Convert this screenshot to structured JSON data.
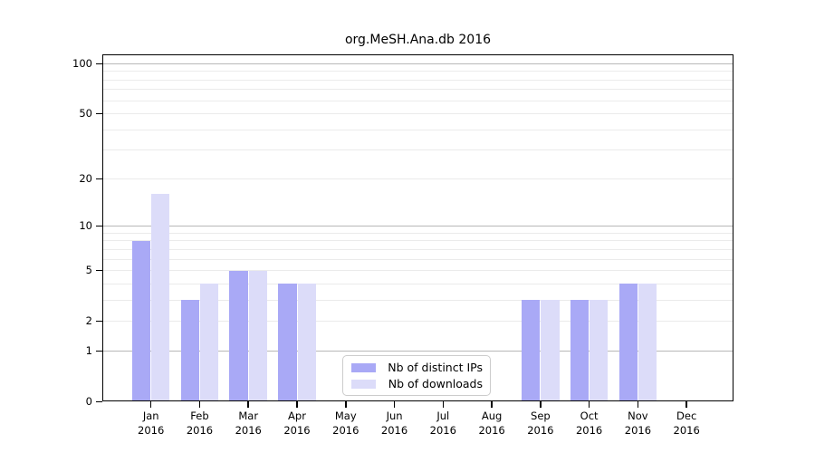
{
  "figure": {
    "title": "org.MeSH.Ana.db 2016"
  },
  "chart_data": {
    "type": "bar",
    "title": "org.MeSH.Ana.db 2016",
    "categories": [
      {
        "month": "Jan",
        "year": "2016"
      },
      {
        "month": "Feb",
        "year": "2016"
      },
      {
        "month": "Mar",
        "year": "2016"
      },
      {
        "month": "Apr",
        "year": "2016"
      },
      {
        "month": "May",
        "year": "2016"
      },
      {
        "month": "Jun",
        "year": "2016"
      },
      {
        "month": "Jul",
        "year": "2016"
      },
      {
        "month": "Aug",
        "year": "2016"
      },
      {
        "month": "Sep",
        "year": "2016"
      },
      {
        "month": "Oct",
        "year": "2016"
      },
      {
        "month": "Nov",
        "year": "2016"
      },
      {
        "month": "Dec",
        "year": "2016"
      }
    ],
    "series": [
      {
        "name": "Nb of distinct IPs",
        "color": "#a9a9f6",
        "values": [
          8,
          3,
          5,
          4,
          0,
          0,
          0,
          0,
          3,
          3,
          4,
          0
        ]
      },
      {
        "name": "Nb of downloads",
        "color": "#dcdcf9",
        "values": [
          16,
          4,
          5,
          4,
          0,
          0,
          0,
          0,
          3,
          3,
          4,
          0
        ]
      }
    ],
    "y_scale": "log10(1+y)",
    "y_ticks": [
      0,
      1,
      2,
      5,
      10,
      20,
      50,
      100
    ],
    "y_gridlines_major": [
      1,
      10,
      100
    ],
    "y_gridlines_minor": [
      2,
      3,
      4,
      5,
      6,
      7,
      8,
      9,
      20,
      30,
      40,
      50,
      60,
      70,
      80,
      90
    ],
    "ylim": [
      0,
      115
    ],
    "xlabel": "",
    "ylabel": "",
    "grid": "horizontal",
    "legend_position": "bottom-center"
  },
  "colors": {
    "bar_distinct_ips": "#a9a9f6",
    "bar_downloads": "#dcdcf9",
    "grid_minor": "#ebebeb",
    "grid_major": "#b8b8b8",
    "axis": "#000000",
    "legend_border": "#cccccc",
    "background": "#ffffff"
  }
}
